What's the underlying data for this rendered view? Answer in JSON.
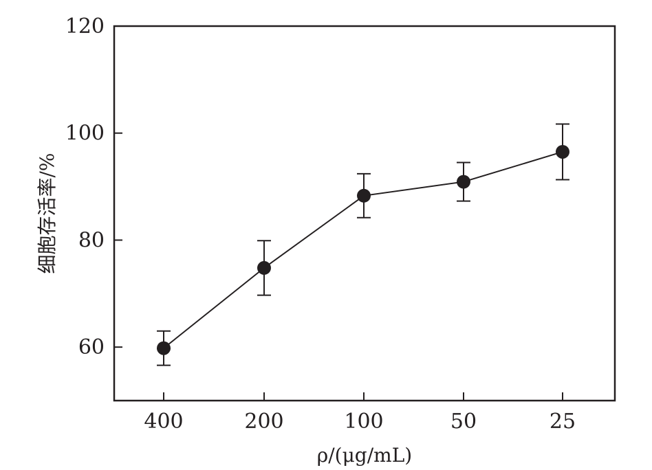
{
  "chart_data": {
    "type": "line",
    "title": "",
    "xlabel": "ρ/(μg/mL)",
    "ylabel": "细胞存活率/%",
    "categories": [
      "400",
      "200",
      "100",
      "50",
      "25"
    ],
    "series": [
      {
        "values": [
          59.8,
          74.8,
          88.3,
          90.9,
          96.5
        ],
        "error": [
          3.2,
          5.1,
          4.1,
          3.6,
          5.2
        ]
      }
    ],
    "ylim": [
      50,
      120
    ],
    "yticks": [
      60,
      80,
      100,
      120
    ],
    "grid": false,
    "legend": "none",
    "colors": {
      "line": "#231f20",
      "marker": "#231f20",
      "axis": "#231f20"
    }
  }
}
